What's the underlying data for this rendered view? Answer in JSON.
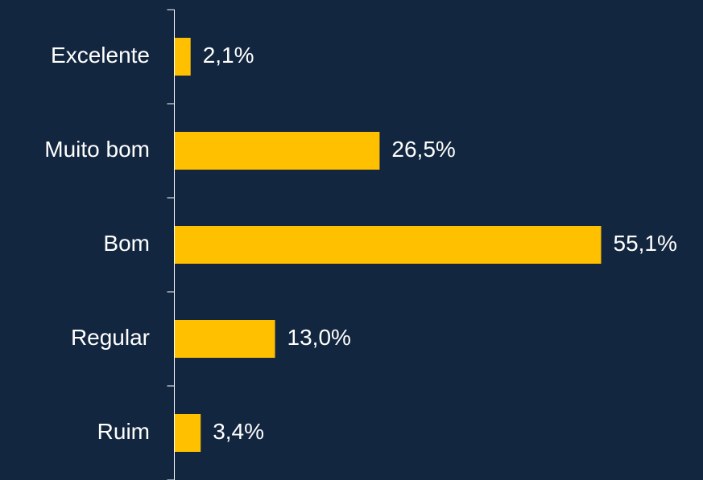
{
  "chart_data": {
    "type": "bar",
    "orientation": "horizontal",
    "categories": [
      "Excelente",
      "Muito bom",
      "Bom",
      "Regular",
      "Ruim"
    ],
    "values": [
      2.1,
      26.5,
      55.1,
      13.0,
      3.4
    ],
    "value_labels": [
      "2,1%",
      "26,5%",
      "55,1%",
      "13,0%",
      "3,4%"
    ],
    "color": "#ffc000"
  }
}
